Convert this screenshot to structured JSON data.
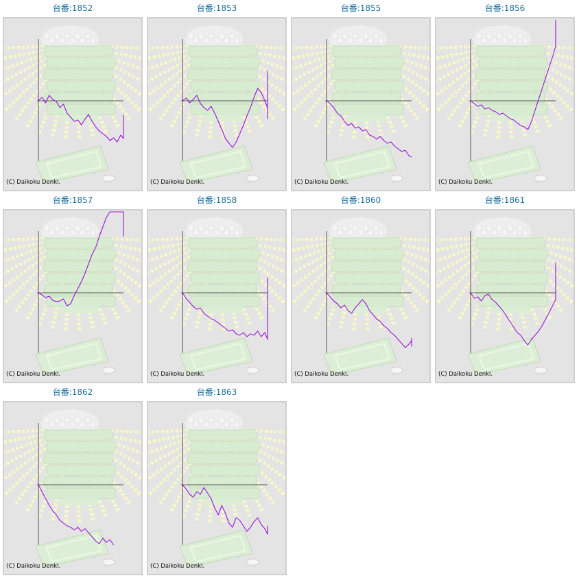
{
  "colors": {
    "line": "#9a12d6",
    "axis": "#555555",
    "title": "#1a6fa0",
    "background": "#e4e4e4"
  },
  "copyright": "(C) Daikoku Denki.",
  "chart_data": [
    {
      "type": "line",
      "title": "台番:1852",
      "values": [
        0,
        5,
        -3,
        8,
        2,
        -1,
        -10,
        -5,
        -18,
        -24,
        -30,
        -28,
        -35,
        -27,
        -20,
        -30,
        -38,
        -44,
        -48,
        -52,
        -58,
        -54,
        -60,
        -50,
        -55,
        -44,
        -40,
        -46,
        -38,
        -36,
        -30,
        -38,
        -40,
        -30,
        -20
      ]
    },
    {
      "type": "line",
      "title": "台番:1853",
      "values": [
        0,
        4,
        -3,
        2,
        8,
        -4,
        -10,
        -14,
        -8,
        -18,
        -30,
        -42,
        -55,
        -62,
        -68,
        -60,
        -48,
        -36,
        -22,
        -10,
        5,
        18,
        12,
        0,
        -10,
        -20,
        -26,
        -20,
        -8,
        -16,
        -26,
        -10,
        10,
        28,
        44
      ]
    },
    {
      "type": "line",
      "title": "台番:1855",
      "values": [
        0,
        -4,
        -10,
        -18,
        -22,
        -30,
        -36,
        -33,
        -40,
        -38,
        -44,
        -42,
        -50,
        -52,
        -56,
        -52,
        -58,
        -62,
        -60,
        -66,
        -70,
        -74,
        -72,
        -80,
        -82
      ]
    },
    {
      "type": "line",
      "title": "台番:1856",
      "values": [
        0,
        -4,
        -8,
        -6,
        -12,
        -10,
        -14,
        -16,
        -20,
        -18,
        -22,
        -26,
        -28,
        -32,
        -36,
        -38,
        -42,
        -30,
        -14,
        2,
        18,
        34,
        50,
        66,
        80,
        92,
        104,
        116,
        122
      ]
    },
    {
      "type": "line",
      "title": "台番:1857",
      "values": [
        0,
        -3,
        -7,
        -5,
        -11,
        -13,
        -12,
        -9,
        -19,
        -16,
        -4,
        6,
        16,
        28,
        42,
        56,
        66,
        82,
        96,
        110,
        124,
        132,
        142,
        156,
        170,
        182,
        196,
        200,
        208,
        214,
        198,
        186,
        176,
        168,
        160,
        150,
        140,
        130,
        122,
        112,
        106,
        100,
        94,
        90,
        86,
        82
      ]
    },
    {
      "type": "line",
      "title": "台番:1858",
      "values": [
        0,
        -8,
        -14,
        -20,
        -24,
        -22,
        -30,
        -34,
        -38,
        -40,
        -44,
        -48,
        -52,
        -56,
        -54,
        -60,
        -62,
        -58,
        -64,
        -60,
        -62,
        -56,
        -64,
        -58,
        -68,
        -62,
        -54,
        -42,
        -30,
        -16,
        -2,
        12,
        22
      ]
    },
    {
      "type": "line",
      "title": "台番:1860",
      "values": [
        0,
        -6,
        -12,
        -16,
        -22,
        -18,
        -26,
        -30,
        -22,
        -16,
        -10,
        -16,
        -26,
        -32,
        -38,
        -42,
        -48,
        -52,
        -58,
        -62,
        -68,
        -74,
        -80,
        -75,
        -70,
        -78,
        -66
      ]
    },
    {
      "type": "line",
      "title": "台番:1861",
      "values": [
        0,
        -8,
        -6,
        -12,
        -4,
        -2,
        -10,
        -14,
        -20,
        -26,
        -34,
        -42,
        -50,
        -58,
        -62,
        -70,
        -76,
        -68,
        -62,
        -56,
        -48,
        -38,
        -28,
        -18,
        -10,
        -2,
        10,
        22,
        32,
        44
      ]
    },
    {
      "type": "line",
      "title": "台番:1862",
      "values": [
        0,
        -10,
        -20,
        -30,
        -38,
        -44,
        -52,
        -56,
        -60,
        -62,
        -66,
        -62,
        -68,
        -64,
        -70,
        -76,
        -82,
        -86,
        -78,
        -84,
        -80,
        -88
      ]
    },
    {
      "type": "line",
      "title": "台番:1863",
      "values": [
        0,
        -6,
        -14,
        -18,
        -10,
        -14,
        -4,
        -12,
        -20,
        -34,
        -44,
        -30,
        -42,
        -56,
        -62,
        -48,
        -52,
        -60,
        -68,
        -62,
        -54,
        -48,
        -58,
        -64,
        -72,
        -60,
        -66
      ]
    }
  ]
}
